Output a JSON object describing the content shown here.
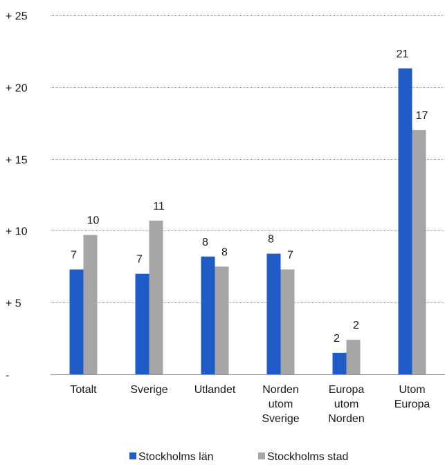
{
  "chart_data": {
    "type": "bar",
    "categories": [
      [
        "Totalt"
      ],
      [
        "Sverige"
      ],
      [
        "Utlandet"
      ],
      [
        "Norden",
        "utom",
        "Sverige"
      ],
      [
        "Europa",
        "utom",
        "Norden"
      ],
      [
        "Utom",
        "Europa"
      ]
    ],
    "series": [
      {
        "name": "Stockholms län",
        "color": "#1f5cc7",
        "values": [
          7.3,
          7.0,
          8.2,
          8.4,
          1.5,
          21.3
        ],
        "labels": [
          "7",
          "7",
          "8",
          "8",
          "2",
          "21"
        ]
      },
      {
        "name": "Stockholms stad",
        "color": "#a6a6a6",
        "values": [
          9.7,
          10.7,
          7.5,
          7.3,
          2.4,
          17.0
        ],
        "labels": [
          "10",
          "11",
          "8",
          "7",
          "2",
          "17"
        ]
      }
    ],
    "ylim": [
      0,
      25
    ],
    "yticks": [
      0,
      5,
      10,
      15,
      20,
      25
    ],
    "ytick_labels": [
      "-",
      "+ 5",
      "+ 10",
      "+ 15",
      "+ 20",
      "+ 25"
    ],
    "grid": true,
    "legend_position": "bottom-center",
    "title": "",
    "xlabel": "",
    "ylabel": ""
  }
}
